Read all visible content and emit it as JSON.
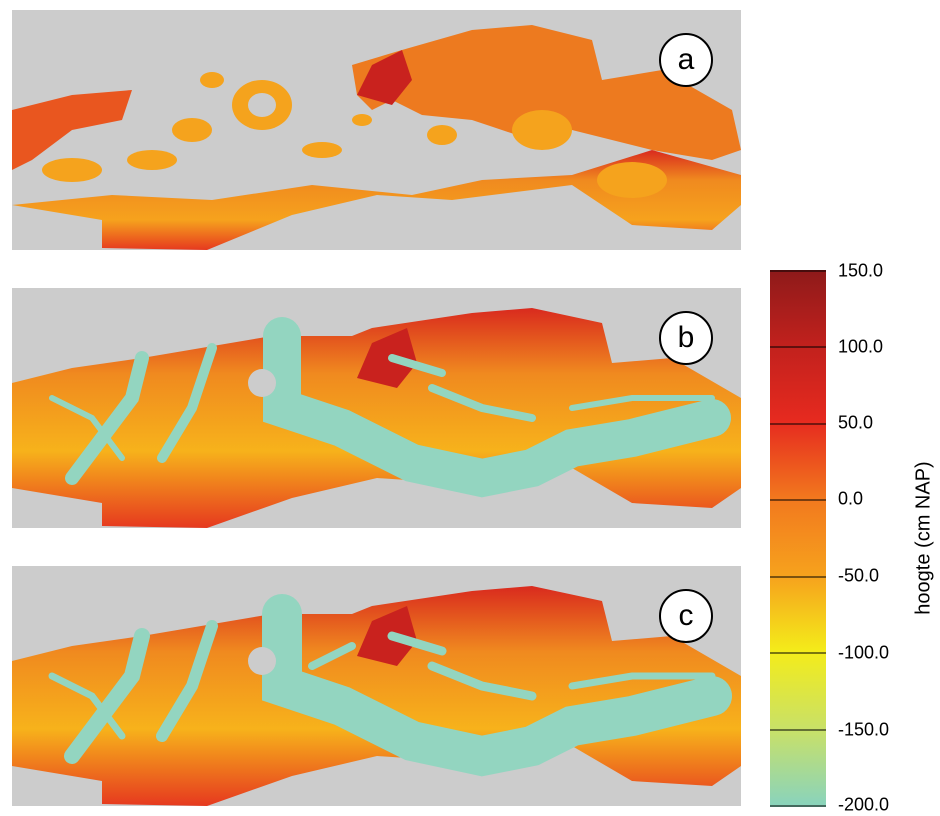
{
  "panels": [
    {
      "label": "a",
      "variant": "no-water"
    },
    {
      "label": "b",
      "variant": "channels"
    },
    {
      "label": "c",
      "variant": "channels-detail"
    }
  ],
  "colorbar": {
    "label": "hoogte (cm NAP)",
    "ticks": [
      "150.0",
      "100.0",
      "50.0",
      "0.0",
      "-50.0",
      "-100.0",
      "-150.0",
      "-200.0"
    ],
    "range": [
      -200,
      150
    ],
    "colors": {
      "low": "#88d3be",
      "mid_low": "#f4ec1a",
      "mid": "#f6a21d",
      "high": "#e62a1f",
      "top": "#8e1a1a"
    }
  },
  "background": "#cccccc",
  "water_color": "#93d5c0"
}
